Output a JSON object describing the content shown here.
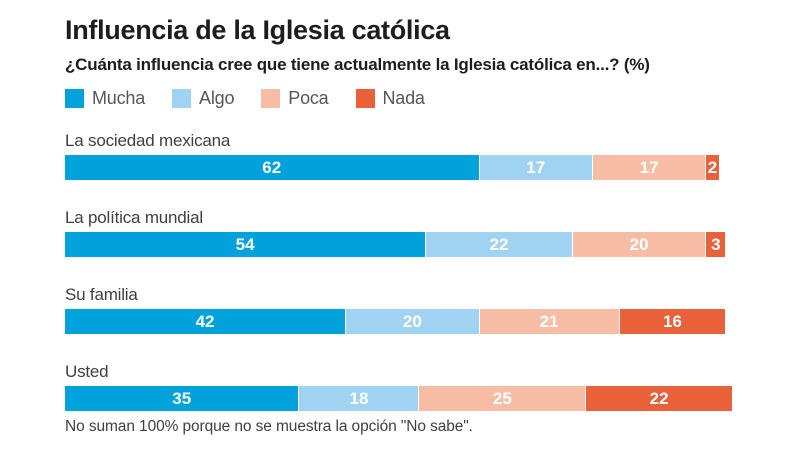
{
  "page": {
    "title": "Influencia de la Iglesia católica",
    "subtitle": "¿Cuánta influencia cree que tiene actualmente la Iglesia católica en...? (%)",
    "footnote": "No suman 100% porque no se muestra la opción \"No sabe\"."
  },
  "colors": {
    "mucha": "#00A2DC",
    "algo": "#A0D3F1",
    "poca": "#F6BDA4",
    "nada": "#E8613B",
    "title_text": "#1D1D1B",
    "label_text": "#3F3F41",
    "legend_text": "#565659",
    "value_text": "#FFFFFF",
    "background": "#FFFFFF"
  },
  "legend": [
    {
      "label": "Mucha",
      "color": "#00A2DC"
    },
    {
      "label": "Algo",
      "color": "#A0D3F1"
    },
    {
      "label": "Poca",
      "color": "#F6BDA4"
    },
    {
      "label": "Nada",
      "color": "#E8613B"
    }
  ],
  "chart_data": {
    "type": "bar",
    "orientation": "horizontal",
    "stacked": true,
    "unit": "%",
    "title": "Influencia de la Iglesia católica",
    "subtitle": "¿Cuánta influencia cree que tiene actualmente la Iglesia católica en...? (%)",
    "categories": [
      "La sociedad mexicana",
      "La política mundial",
      "Su familia",
      "Usted"
    ],
    "series": [
      {
        "name": "Mucha",
        "color": "#00A2DC",
        "values": [
          62,
          54,
          42,
          35
        ]
      },
      {
        "name": "Algo",
        "color": "#A0D3F1",
        "values": [
          17,
          22,
          20,
          18
        ]
      },
      {
        "name": "Poca",
        "color": "#F6BDA4",
        "values": [
          17,
          20,
          21,
          25
        ]
      },
      {
        "name": "Nada",
        "color": "#E8613B",
        "values": [
          2,
          3,
          16,
          22
        ]
      }
    ],
    "xlim": [
      0,
      100
    ],
    "grid": false,
    "legend_position": "top",
    "value_labels": "inside-center",
    "note": "No suman 100% porque no se muestra la opción \"No sabe\"."
  }
}
